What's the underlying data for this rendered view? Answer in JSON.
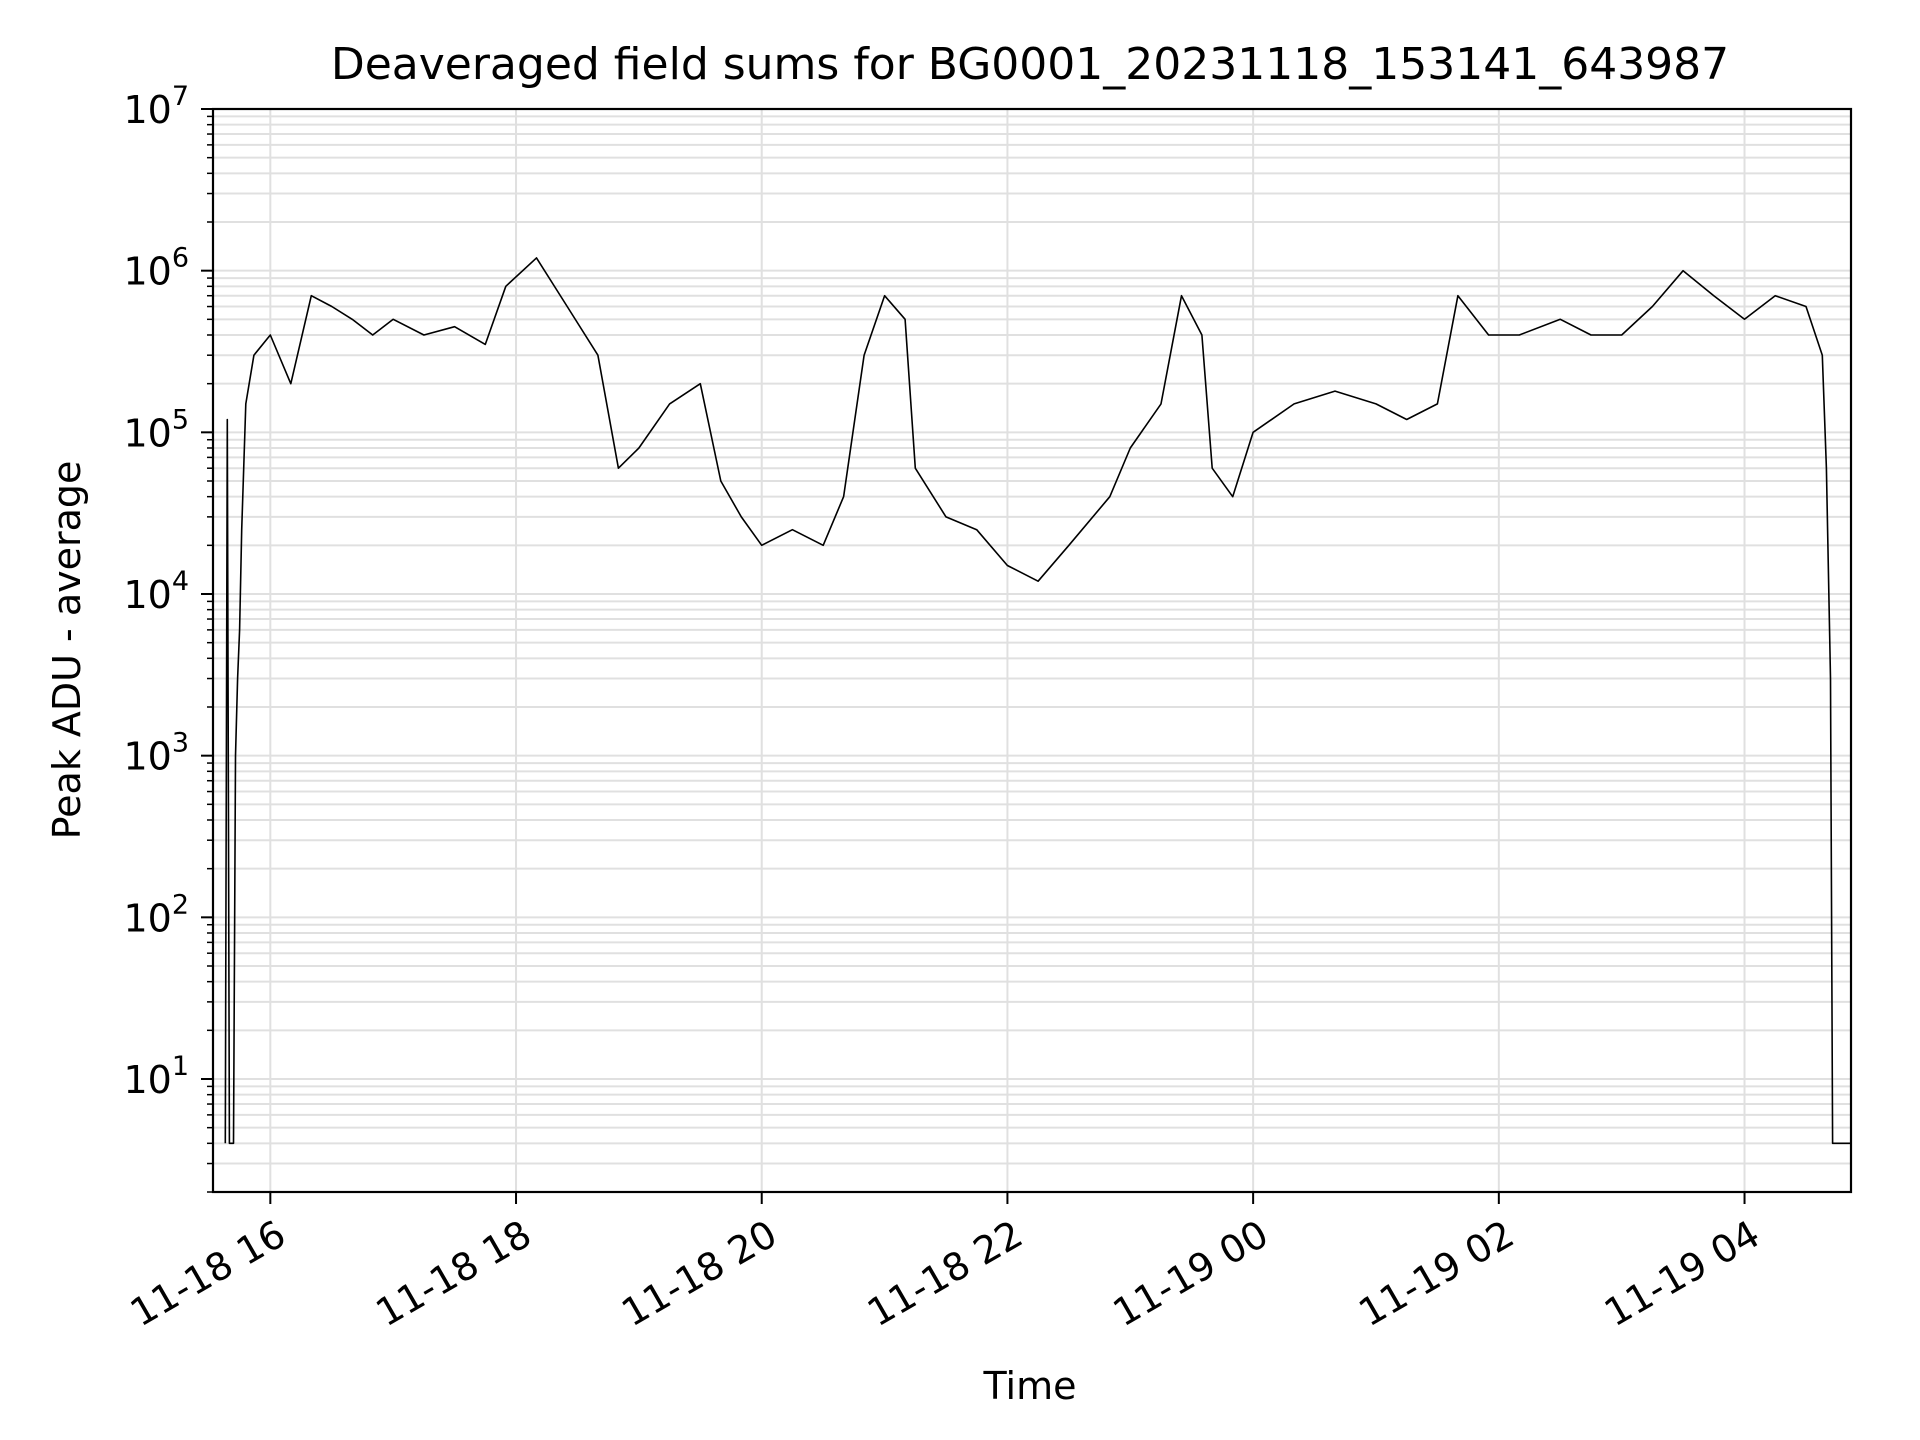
{
  "chart_data": {
    "type": "line",
    "title": "Deaveraged field sums for BG0001_20231118_153141_643987",
    "xlabel": "Time",
    "ylabel": "Peak ADU - average",
    "yscale": "log",
    "ylim": [
      2,
      10000000
    ],
    "xlim": [
      "2023-11-18 15:32",
      "2023-11-19 04:52"
    ],
    "grid": true,
    "line_color": "#000000",
    "grid_color": "#e0e0e0",
    "x_ticks": [
      {
        "label": "11-18 16",
        "value": "2023-11-18 16:00"
      },
      {
        "label": "11-18 18",
        "value": "2023-11-18 18:00"
      },
      {
        "label": "11-18 20",
        "value": "2023-11-18 20:00"
      },
      {
        "label": "11-18 22",
        "value": "2023-11-18 22:00"
      },
      {
        "label": "11-19 00",
        "value": "2023-11-19 00:00"
      },
      {
        "label": "11-19 02",
        "value": "2023-11-19 02:00"
      },
      {
        "label": "11-19 04",
        "value": "2023-11-19 04:00"
      }
    ],
    "y_ticks": [
      {
        "base": "10",
        "exp": "1",
        "value": 10
      },
      {
        "base": "10",
        "exp": "2",
        "value": 100
      },
      {
        "base": "10",
        "exp": "3",
        "value": 1000
      },
      {
        "base": "10",
        "exp": "4",
        "value": 10000
      },
      {
        "base": "10",
        "exp": "5",
        "value": 100000
      },
      {
        "base": "10",
        "exp": "6",
        "value": 1000000
      },
      {
        "base": "10",
        "exp": "7",
        "value": 10000000
      }
    ],
    "series": [
      {
        "values": [
          [
            "2023-11-18 15:38",
            4
          ],
          [
            "2023-11-18 15:39",
            120000
          ],
          [
            "2023-11-18 15:40",
            4
          ],
          [
            "2023-11-18 15:42",
            4
          ],
          [
            "2023-11-18 15:43",
            1000
          ],
          [
            "2023-11-18 15:44",
            3000
          ],
          [
            "2023-11-18 15:45",
            6000
          ],
          [
            "2023-11-18 15:46",
            25000
          ],
          [
            "2023-11-18 15:48",
            150000
          ],
          [
            "2023-11-18 15:52",
            300000
          ],
          [
            "2023-11-18 16:00",
            400000
          ],
          [
            "2023-11-18 16:10",
            200000
          ],
          [
            "2023-11-18 16:20",
            700000
          ],
          [
            "2023-11-18 16:30",
            600000
          ],
          [
            "2023-11-18 16:40",
            500000
          ],
          [
            "2023-11-18 16:50",
            400000
          ],
          [
            "2023-11-18 17:00",
            500000
          ],
          [
            "2023-11-18 17:15",
            400000
          ],
          [
            "2023-11-18 17:30",
            450000
          ],
          [
            "2023-11-18 17:45",
            350000
          ],
          [
            "2023-11-18 17:55",
            800000
          ],
          [
            "2023-11-18 18:10",
            1200000
          ],
          [
            "2023-11-18 18:25",
            600000
          ],
          [
            "2023-11-18 18:40",
            300000
          ],
          [
            "2023-11-18 18:50",
            60000
          ],
          [
            "2023-11-18 19:00",
            80000
          ],
          [
            "2023-11-18 19:15",
            150000
          ],
          [
            "2023-11-18 19:30",
            200000
          ],
          [
            "2023-11-18 19:40",
            50000
          ],
          [
            "2023-11-18 19:50",
            30000
          ],
          [
            "2023-11-18 20:00",
            20000
          ],
          [
            "2023-11-18 20:15",
            25000
          ],
          [
            "2023-11-18 20:30",
            20000
          ],
          [
            "2023-11-18 20:40",
            40000
          ],
          [
            "2023-11-18 20:50",
            300000
          ],
          [
            "2023-11-18 21:00",
            700000
          ],
          [
            "2023-11-18 21:10",
            500000
          ],
          [
            "2023-11-18 21:15",
            60000
          ],
          [
            "2023-11-18 21:30",
            30000
          ],
          [
            "2023-11-18 21:45",
            25000
          ],
          [
            "2023-11-18 22:00",
            15000
          ],
          [
            "2023-11-18 22:15",
            12000
          ],
          [
            "2023-11-18 22:30",
            20000
          ],
          [
            "2023-11-18 22:50",
            40000
          ],
          [
            "2023-11-18 23:00",
            80000
          ],
          [
            "2023-11-18 23:15",
            150000
          ],
          [
            "2023-11-18 23:25",
            700000
          ],
          [
            "2023-11-18 23:35",
            400000
          ],
          [
            "2023-11-18 23:40",
            60000
          ],
          [
            "2023-11-18 23:50",
            40000
          ],
          [
            "2023-11-19 00:00",
            100000
          ],
          [
            "2023-11-19 00:20",
            150000
          ],
          [
            "2023-11-19 00:40",
            180000
          ],
          [
            "2023-11-19 01:00",
            150000
          ],
          [
            "2023-11-19 01:15",
            120000
          ],
          [
            "2023-11-19 01:30",
            150000
          ],
          [
            "2023-11-19 01:40",
            700000
          ],
          [
            "2023-11-19 01:55",
            400000
          ],
          [
            "2023-11-19 02:10",
            400000
          ],
          [
            "2023-11-19 02:30",
            500000
          ],
          [
            "2023-11-19 02:45",
            400000
          ],
          [
            "2023-11-19 03:00",
            400000
          ],
          [
            "2023-11-19 03:15",
            600000
          ],
          [
            "2023-11-19 03:30",
            1000000
          ],
          [
            "2023-11-19 03:45",
            700000
          ],
          [
            "2023-11-19 04:00",
            500000
          ],
          [
            "2023-11-19 04:15",
            700000
          ],
          [
            "2023-11-19 04:30",
            600000
          ],
          [
            "2023-11-19 04:38",
            300000
          ],
          [
            "2023-11-19 04:40",
            60000
          ],
          [
            "2023-11-19 04:42",
            3000
          ],
          [
            "2023-11-19 04:43",
            4
          ],
          [
            "2023-11-19 04:52",
            4
          ]
        ]
      }
    ]
  }
}
